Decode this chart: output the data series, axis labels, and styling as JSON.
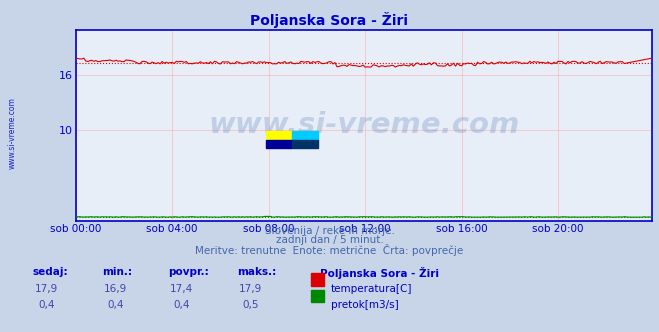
{
  "title": "Poljanska Sora - Žiri",
  "title_color": "#0000cc",
  "bg_color": "#c8d4e8",
  "plot_bg_color": "#e8eef8",
  "grid_color": "#ffaaaa",
  "axis_color": "#0000cc",
  "watermark_text": "www.si-vreme.com",
  "watermark_color": "#6688bb",
  "watermark_alpha": 0.3,
  "temp_color": "#dd0000",
  "flow_color": "#008800",
  "border_color": "#0000cc",
  "ylabel_color": "#0000cc",
  "xlabel_color": "#0000cc",
  "temp_avg": 17.4,
  "flow_avg": 0.4,
  "ylim_min": 0,
  "ylim_max": 21.0,
  "y_ticks": [
    10,
    16
  ],
  "y_tick_labels": [
    "10",
    "16"
  ],
  "x_tick_labels": [
    "sob 00:00",
    "sob 04:00",
    "sob 08:00",
    "sob 12:00",
    "sob 16:00",
    "sob 20:00"
  ],
  "n_points": 288,
  "subtitle1": "Slovenija / reke in morje.",
  "subtitle2": "zadnji dan / 5 minut.",
  "subtitle3": "Meritve: trenutne  Enote: metrične  Črta: povprečje",
  "subtitle_color": "#4466aa",
  "legend_station": "Poljanska Sora - Žiri",
  "legend_temp": "temperatura[C]",
  "legend_flow": "pretok[m3/s]",
  "legend_color": "#0000cc",
  "table_headers": [
    "sedaj:",
    "min.:",
    "povpr.:",
    "maks.:"
  ],
  "table_temp_vals": [
    "17,9",
    "16,9",
    "17,4",
    "17,9"
  ],
  "table_flow_vals": [
    "0,4",
    "0,4",
    "0,4",
    "0,5"
  ],
  "table_val_color": "#4444aa",
  "logo_yellow": "#ffff00",
  "logo_cyan": "#00ccff",
  "logo_blue": "#000099",
  "logo_darkblue": "#003366",
  "side_watermark": "www.si-vreme.com",
  "side_watermark_color": "#0000cc"
}
